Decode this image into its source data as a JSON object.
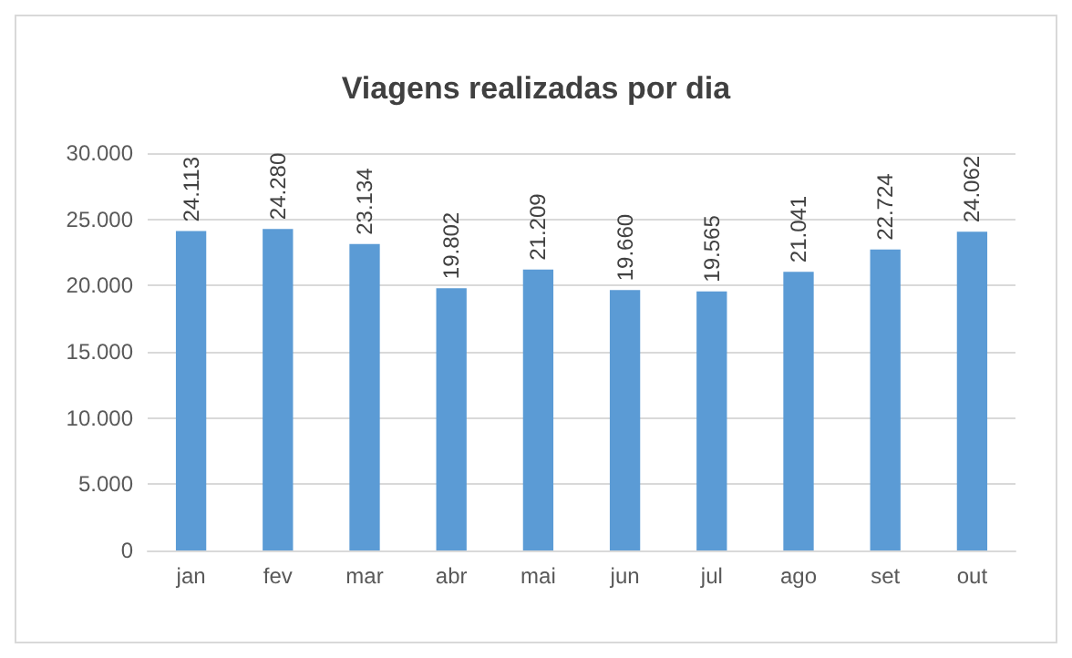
{
  "chart_data": {
    "type": "bar",
    "title": "Viagens realizadas por dia",
    "categories": [
      "jan",
      "fev",
      "mar",
      "abr",
      "mai",
      "jun",
      "jul",
      "ago",
      "set",
      "out"
    ],
    "values": [
      24113,
      24280,
      23134,
      19802,
      21209,
      19660,
      19565,
      21041,
      22724,
      24062
    ],
    "value_labels": [
      "24.113",
      "24.280",
      "23.134",
      "19.802",
      "21.209",
      "19.660",
      "19.565",
      "21.041",
      "22.724",
      "24.062"
    ],
    "color": "#5b9bd5",
    "ylim": [
      0,
      30000
    ],
    "yticks": [
      0,
      {
        "value": 5000,
        "label": "5.000"
      },
      {
        "value": 10000,
        "label": "10.000"
      },
      {
        "value": 15000,
        "label": "15.000"
      },
      {
        "value": 20000,
        "label": "20.000"
      },
      {
        "value": 25000,
        "label": "25.000"
      },
      {
        "value": 30000,
        "label": "30.000"
      }
    ],
    "grid": "y"
  }
}
